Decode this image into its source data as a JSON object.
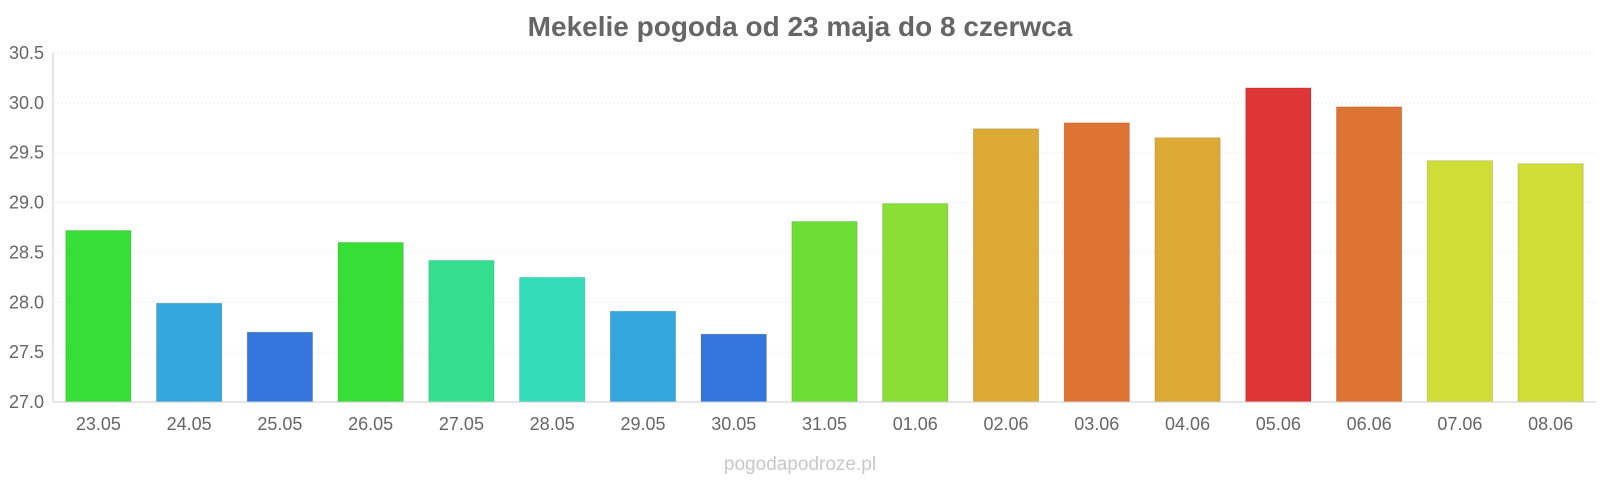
{
  "watermark": "pogodapodroze.pl",
  "chart_data": {
    "type": "bar",
    "title": "Mekelie pogoda od 23 maja do 8 czerwca",
    "xlabel": "",
    "ylabel": "",
    "ylim": [
      27.0,
      30.5
    ],
    "yticks": [
      "27.0",
      "27.5",
      "28.0",
      "28.5",
      "29.0",
      "29.5",
      "30.0",
      "30.5"
    ],
    "grid": true,
    "categories": [
      "23.05",
      "24.05",
      "25.05",
      "26.05",
      "27.05",
      "28.05",
      "29.05",
      "30.05",
      "31.05",
      "01.06",
      "02.06",
      "03.06",
      "04.06",
      "05.06",
      "06.06",
      "07.06",
      "08.06"
    ],
    "values": [
      28.72,
      27.99,
      27.7,
      28.6,
      28.42,
      28.25,
      27.91,
      27.68,
      28.81,
      28.99,
      29.74,
      29.8,
      29.65,
      30.15,
      29.96,
      29.42,
      29.39
    ],
    "colors": [
      "#36de36",
      "#34a6de",
      "#3476de",
      "#36de36",
      "#34de8c",
      "#34dcbc",
      "#34a6de",
      "#3476de",
      "#6cde36",
      "#8ade36",
      "#dcaa34",
      "#de7434",
      "#dcaa34",
      "#de3636",
      "#de7434",
      "#cede36",
      "#cede36"
    ]
  }
}
